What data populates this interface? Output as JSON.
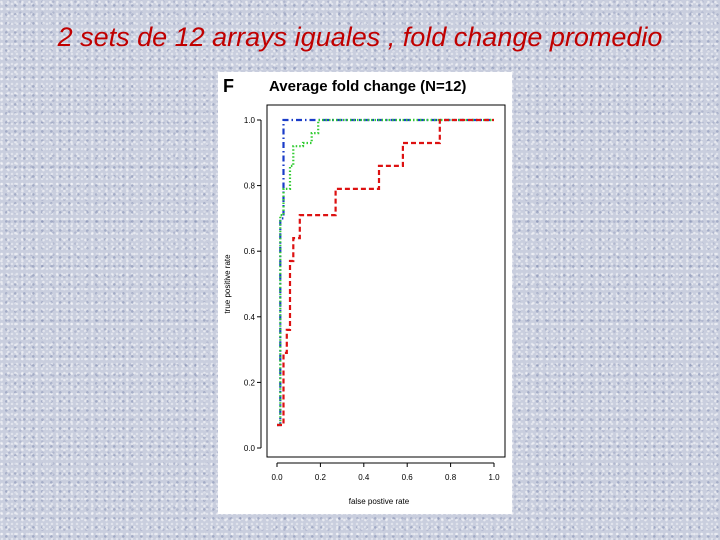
{
  "slide": {
    "title": "2 sets de 12 arrays iguales , fold change promedio"
  },
  "colors": {
    "title": "#c00000",
    "background": "#c9cede"
  },
  "chart_data": {
    "type": "line",
    "panel_letter": "F",
    "title": "Average fold change (N=12)",
    "xlabel": "false postive rate",
    "ylabel": "true positive rate",
    "xlim": [
      0,
      1
    ],
    "ylim": [
      0,
      1
    ],
    "x_ticks": [
      "0.0",
      "0.2",
      "0.4",
      "0.6",
      "0.8",
      "1.0"
    ],
    "y_ticks": [
      "0.0",
      "0.2",
      "0.4",
      "0.6",
      "0.8",
      "1.0"
    ],
    "grid": false,
    "series": [
      {
        "color": "#1a3cc8",
        "style": "dash-dot",
        "points": [
          [
            0,
            0.07
          ],
          [
            0.015,
            0.07
          ],
          [
            0.015,
            0.7
          ],
          [
            0.03,
            0.7
          ],
          [
            0.03,
            1.0
          ],
          [
            1.0,
            1.0
          ]
        ]
      },
      {
        "color": "#33cc33",
        "style": "dotted",
        "points": [
          [
            0,
            0.07
          ],
          [
            0.015,
            0.07
          ],
          [
            0.015,
            0.71
          ],
          [
            0.03,
            0.71
          ],
          [
            0.03,
            0.79
          ],
          [
            0.06,
            0.79
          ],
          [
            0.06,
            0.86
          ],
          [
            0.075,
            0.86
          ],
          [
            0.075,
            0.92
          ],
          [
            0.12,
            0.92
          ],
          [
            0.12,
            0.93
          ],
          [
            0.16,
            0.93
          ],
          [
            0.16,
            0.96
          ],
          [
            0.19,
            0.96
          ],
          [
            0.19,
            1.0
          ],
          [
            1.0,
            1.0
          ]
        ]
      },
      {
        "color": "#dd1111",
        "style": "dashed",
        "points": [
          [
            0,
            0.07
          ],
          [
            0.03,
            0.07
          ],
          [
            0.03,
            0.29
          ],
          [
            0.045,
            0.29
          ],
          [
            0.045,
            0.36
          ],
          [
            0.06,
            0.36
          ],
          [
            0.06,
            0.57
          ],
          [
            0.075,
            0.57
          ],
          [
            0.075,
            0.64
          ],
          [
            0.105,
            0.64
          ],
          [
            0.105,
            0.71
          ],
          [
            0.27,
            0.71
          ],
          [
            0.27,
            0.79
          ],
          [
            0.47,
            0.79
          ],
          [
            0.47,
            0.86
          ],
          [
            0.58,
            0.86
          ],
          [
            0.58,
            0.93
          ],
          [
            0.75,
            0.93
          ],
          [
            0.75,
            1.0
          ],
          [
            1.0,
            1.0
          ]
        ]
      }
    ]
  }
}
